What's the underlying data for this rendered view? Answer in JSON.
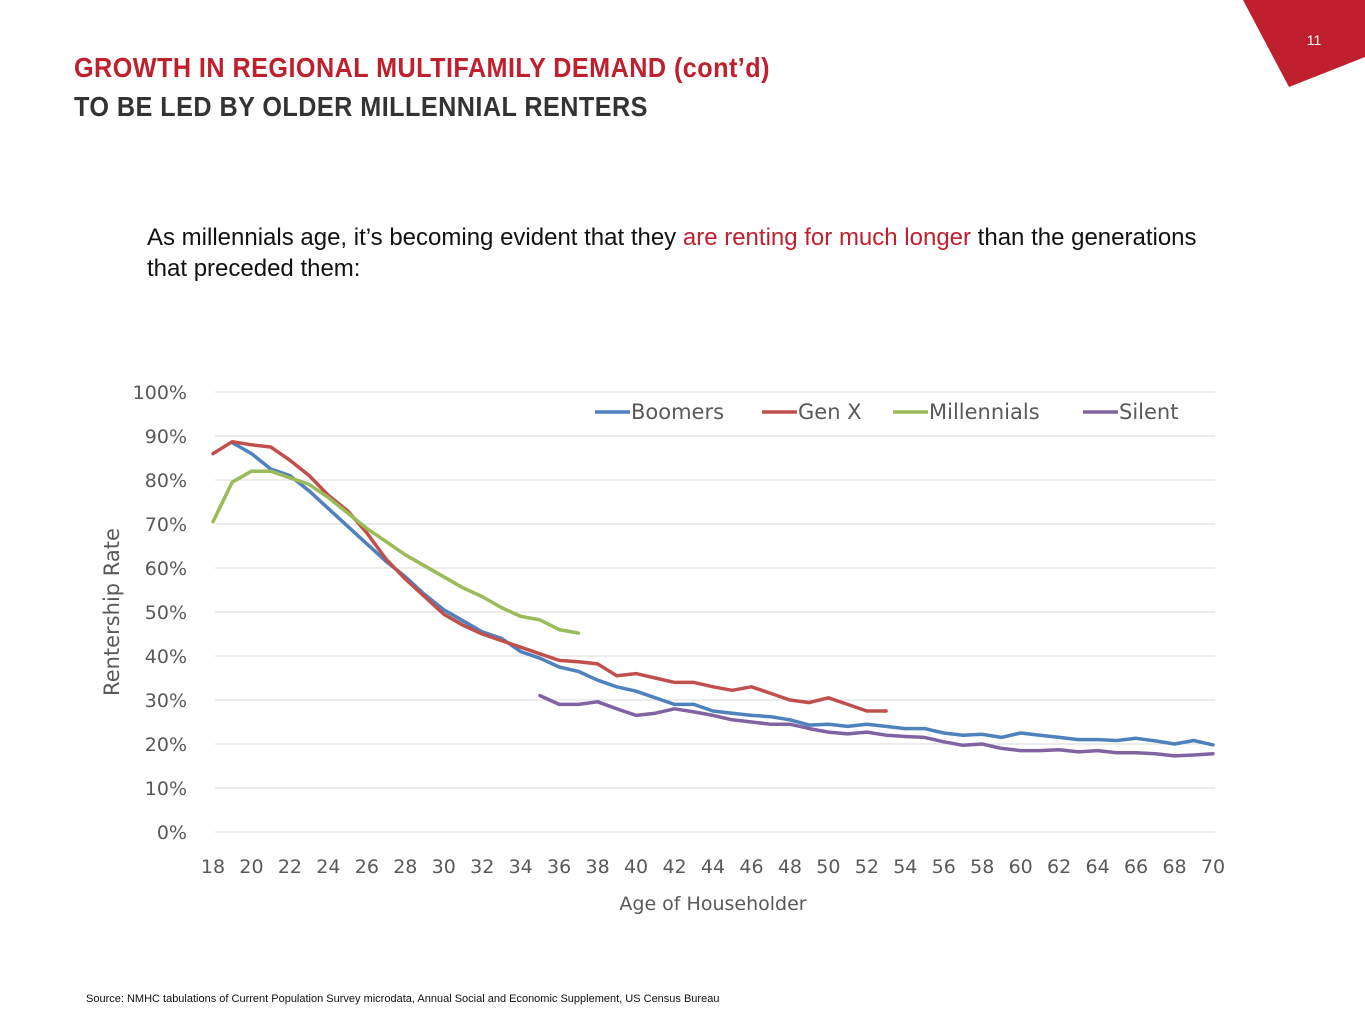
{
  "page_number": "11",
  "header": {
    "title_line1": "GROWTH IN REGIONAL MULTIFAMILY DEMAND (cont’d)",
    "title_line2": "TO BE LED BY OLDER MILLENNIAL RENTERS"
  },
  "intro": {
    "part1": "As millennials age, it’s becoming evident that they ",
    "highlight": "are renting for much longer",
    "part2": " than the generations that preceded them:"
  },
  "colors": {
    "brand_red": "#c0202e",
    "Boomers": "#4f81bd",
    "Gen X": "#c0504d",
    "Millennials": "#9bbb59",
    "Silent": "#8064a2"
  },
  "chart_data": {
    "type": "line",
    "xlabel": "Age of Householder",
    "ylabel": "Rentership Rate",
    "xlim": [
      18,
      70
    ],
    "x_ticks": [
      18,
      20,
      22,
      24,
      26,
      28,
      30,
      32,
      34,
      36,
      38,
      40,
      42,
      44,
      46,
      48,
      50,
      52,
      54,
      56,
      58,
      60,
      62,
      64,
      66,
      68,
      70
    ],
    "ylim": [
      0,
      100
    ],
    "y_ticks": [
      0,
      10,
      20,
      30,
      40,
      50,
      60,
      70,
      80,
      90,
      100
    ],
    "y_tick_format": "percent",
    "grid": "horizontal",
    "legend_position": "top-right",
    "series": [
      {
        "name": "Boomers",
        "x": [
          19,
          20,
          21,
          22,
          23,
          24,
          25,
          26,
          27,
          28,
          29,
          30,
          31,
          32,
          33,
          34,
          35,
          36,
          37,
          38,
          39,
          40,
          41,
          42,
          43,
          44,
          45,
          46,
          47,
          48,
          49,
          50,
          51,
          52,
          53,
          54,
          55,
          56,
          57,
          58,
          59,
          60,
          61,
          62,
          63,
          64,
          65,
          66,
          67,
          68,
          69,
          70
        ],
        "values": [
          88.5,
          86,
          82.5,
          81,
          77.5,
          73.5,
          69.5,
          65.5,
          61.5,
          58,
          54,
          50.5,
          48,
          45.5,
          44,
          41,
          39.5,
          37.5,
          36.5,
          34.5,
          33,
          32,
          30.5,
          29,
          29,
          27.5,
          27,
          26.5,
          26.2,
          25.5,
          24.3,
          24.5,
          24,
          24.5,
          24,
          23.5,
          23.5,
          22.5,
          22,
          22.2,
          21.5,
          22.5,
          22,
          21.5,
          21,
          21,
          20.8,
          21.3,
          20.7,
          20,
          20.8,
          19.8
        ]
      },
      {
        "name": "Gen X",
        "x": [
          18,
          19,
          20,
          21,
          22,
          23,
          24,
          25,
          26,
          27,
          28,
          29,
          30,
          31,
          32,
          33,
          34,
          35,
          36,
          37,
          38,
          39,
          40,
          41,
          42,
          43,
          44,
          45,
          46,
          47,
          48,
          49,
          50,
          51,
          52,
          53
        ],
        "values": [
          86,
          88.7,
          88,
          87.5,
          84.5,
          81,
          76.5,
          73,
          68,
          62,
          57.5,
          53.5,
          49.5,
          47,
          45,
          43.5,
          42,
          40.5,
          39,
          38.7,
          38.2,
          35.5,
          36,
          35,
          34,
          34,
          33,
          32.2,
          33,
          31.5,
          30,
          29.4,
          30.5,
          29,
          27.5,
          27.5
        ]
      },
      {
        "name": "Millennials",
        "x": [
          18,
          19,
          20,
          21,
          22,
          23,
          24,
          25,
          26,
          27,
          28,
          29,
          30,
          31,
          32,
          33,
          34,
          35,
          36,
          37
        ],
        "values": [
          70.5,
          79.5,
          82,
          82,
          80.5,
          79,
          76,
          72.5,
          69,
          66,
          63,
          60.5,
          58,
          55.5,
          53.5,
          51,
          49,
          48.2,
          46,
          45.2
        ]
      },
      {
        "name": "Silent",
        "x": [
          35,
          36,
          37,
          38,
          39,
          40,
          41,
          42,
          43,
          44,
          45,
          46,
          47,
          48,
          49,
          50,
          51,
          52,
          53,
          54,
          55,
          56,
          57,
          58,
          59,
          60,
          61,
          62,
          63,
          64,
          65,
          66,
          67,
          68,
          69,
          70
        ],
        "values": [
          31,
          29,
          29,
          29.6,
          28,
          26.5,
          27,
          28,
          27.3,
          26.5,
          25.5,
          25,
          24.5,
          24.5,
          23.5,
          22.7,
          22.3,
          22.7,
          22,
          21.7,
          21.5,
          20.5,
          19.7,
          20,
          19,
          18.5,
          18.5,
          18.7,
          18.2,
          18.5,
          18,
          18,
          17.8,
          17.3,
          17.5,
          17.8
        ]
      }
    ]
  },
  "source": "Source: NMHC tabulations of Current Population Survey microdata, Annual Social and Economic Supplement, US Census Bureau"
}
